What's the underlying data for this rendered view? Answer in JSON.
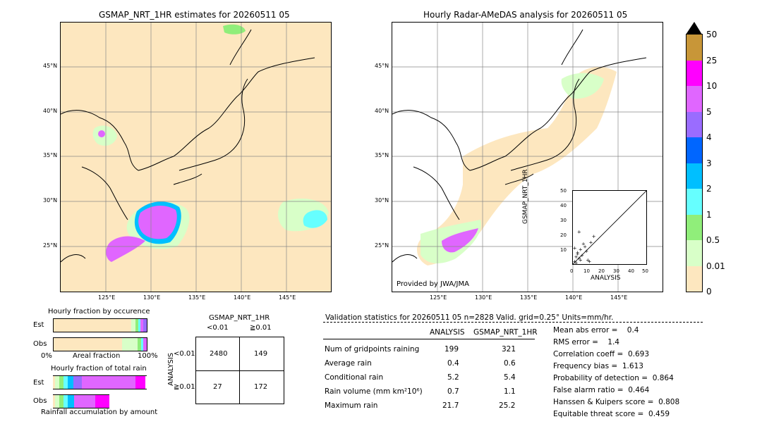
{
  "left_map": {
    "title": "GSMAP_NRT_1HR estimates for 20260511 05",
    "lat_labels": [
      "45°N",
      "40°N",
      "35°N",
      "30°N",
      "25°N"
    ],
    "lon_labels": [
      "125°E",
      "130°E",
      "135°E",
      "140°E",
      "145°E"
    ]
  },
  "right_map": {
    "title": "Hourly Radar-AMeDAS analysis for 20260511 05",
    "lat_labels": [
      "45°N",
      "40°N",
      "35°N",
      "30°N",
      "25°N"
    ],
    "lon_labels": [
      "125°E",
      "130°E",
      "135°E",
      "140°E",
      "145°E"
    ],
    "credit": "Provided by JWA/JMA"
  },
  "colorbar": {
    "labels": [
      "50",
      "25",
      "10",
      "5",
      "4",
      "3",
      "2",
      "1",
      "0.5",
      "0.01",
      "0"
    ],
    "colors": [
      "#c89638",
      "#ff00ff",
      "#e066ff",
      "#9a6cff",
      "#0066ff",
      "#00bfff",
      "#66ffff",
      "#90ee7a",
      "#d8ffc8",
      "#fde7bf"
    ]
  },
  "inset_scatter": {
    "xlabel": "ANALYSIS",
    "ylabel": "GSMAP_NRT_1HR",
    "ticks": [
      "0",
      "10",
      "20",
      "30",
      "40",
      "50"
    ]
  },
  "fraction_occurrence": {
    "title": "Hourly fraction by occurence",
    "rows": [
      "Est",
      "Obs"
    ],
    "axis_left": "0%",
    "axis_mid": "Areal fraction",
    "axis_right": "100%"
  },
  "fraction_total": {
    "title": "Hourly fraction of total rain",
    "rows": [
      "Est",
      "Obs"
    ],
    "footer": "Rainfall accumulation by amount"
  },
  "contingency": {
    "title": "GSMAP_NRT_1HR",
    "col_labels": [
      "<0.01",
      "≧0.01"
    ],
    "row_axis": "ANALYSIS",
    "row_labels": [
      "<0.01",
      "≧0.01"
    ],
    "cells": [
      "2480",
      "149",
      "27",
      "172"
    ]
  },
  "validation": {
    "header": "Validation statistics for 20260511 05  n=2828 Valid. grid=0.25° Units=mm/hr.",
    "col_analysis": "ANALYSIS",
    "col_gsmap": "GSMAP_NRT_1HR",
    "rows": [
      {
        "label": "Num of gridpoints raining",
        "analysis": "199",
        "gsmap": "321"
      },
      {
        "label": "Average rain",
        "analysis": "0.4",
        "gsmap": "0.6"
      },
      {
        "label": "Conditional rain",
        "analysis": "5.2",
        "gsmap": "5.4"
      },
      {
        "label": "Rain volume (mm km²10⁶)",
        "analysis": "0.7",
        "gsmap": "1.1"
      },
      {
        "label": "Maximum rain",
        "analysis": "21.7",
        "gsmap": "25.2"
      }
    ],
    "scores": [
      "Mean abs error =    0.4",
      "RMS error =    1.4",
      "Correlation coeff =  0.693",
      "Frequency bias =  1.613",
      "Probability of detection =  0.864",
      "False alarm ratio =  0.464",
      "Hanssen & Kuipers score =  0.808",
      "Equitable threat score =  0.459"
    ]
  },
  "chart_data": [
    {
      "type": "heatmap",
      "title": "GSMAP_NRT_1HR estimates for 20260511 05",
      "xlim": [
        120,
        150
      ],
      "ylim": [
        20,
        50
      ],
      "x_ticks": [
        "125°E",
        "130°E",
        "135°E",
        "140°E",
        "145°E"
      ],
      "y_ticks": [
        "25°N",
        "30°N",
        "35°N",
        "40°N",
        "45°N"
      ]
    },
    {
      "type": "heatmap",
      "title": "Hourly Radar-AMeDAS analysis for 20260511 05",
      "xlim": [
        120,
        150
      ],
      "ylim": [
        20,
        50
      ],
      "x_ticks": [
        "125°E",
        "130°E",
        "135°E",
        "140°E",
        "145°E"
      ],
      "y_ticks": [
        "25°N",
        "30°N",
        "35°N",
        "40°N",
        "45°N"
      ]
    },
    {
      "type": "scatter",
      "xlabel": "ANALYSIS",
      "ylabel": "GSMAP_NRT_1HR",
      "xlim": [
        0,
        50
      ],
      "ylim": [
        0,
        50
      ],
      "x": [
        1,
        2,
        3,
        4,
        5,
        6,
        8,
        10,
        12,
        14,
        2,
        3,
        5,
        7,
        9,
        11,
        4,
        1
      ],
      "y": [
        2,
        5,
        8,
        4,
        10,
        6,
        12,
        3,
        15,
        19,
        1,
        7,
        3,
        14,
        9,
        2,
        22,
        11
      ]
    },
    {
      "type": "table",
      "title": "GSMAP_NRT_1HR",
      "columns": [
        "<0.01",
        "≧0.01"
      ],
      "rows": [
        "<0.01",
        "≧0.01"
      ],
      "values": [
        [
          2480,
          149
        ],
        [
          27,
          172
        ]
      ]
    }
  ]
}
